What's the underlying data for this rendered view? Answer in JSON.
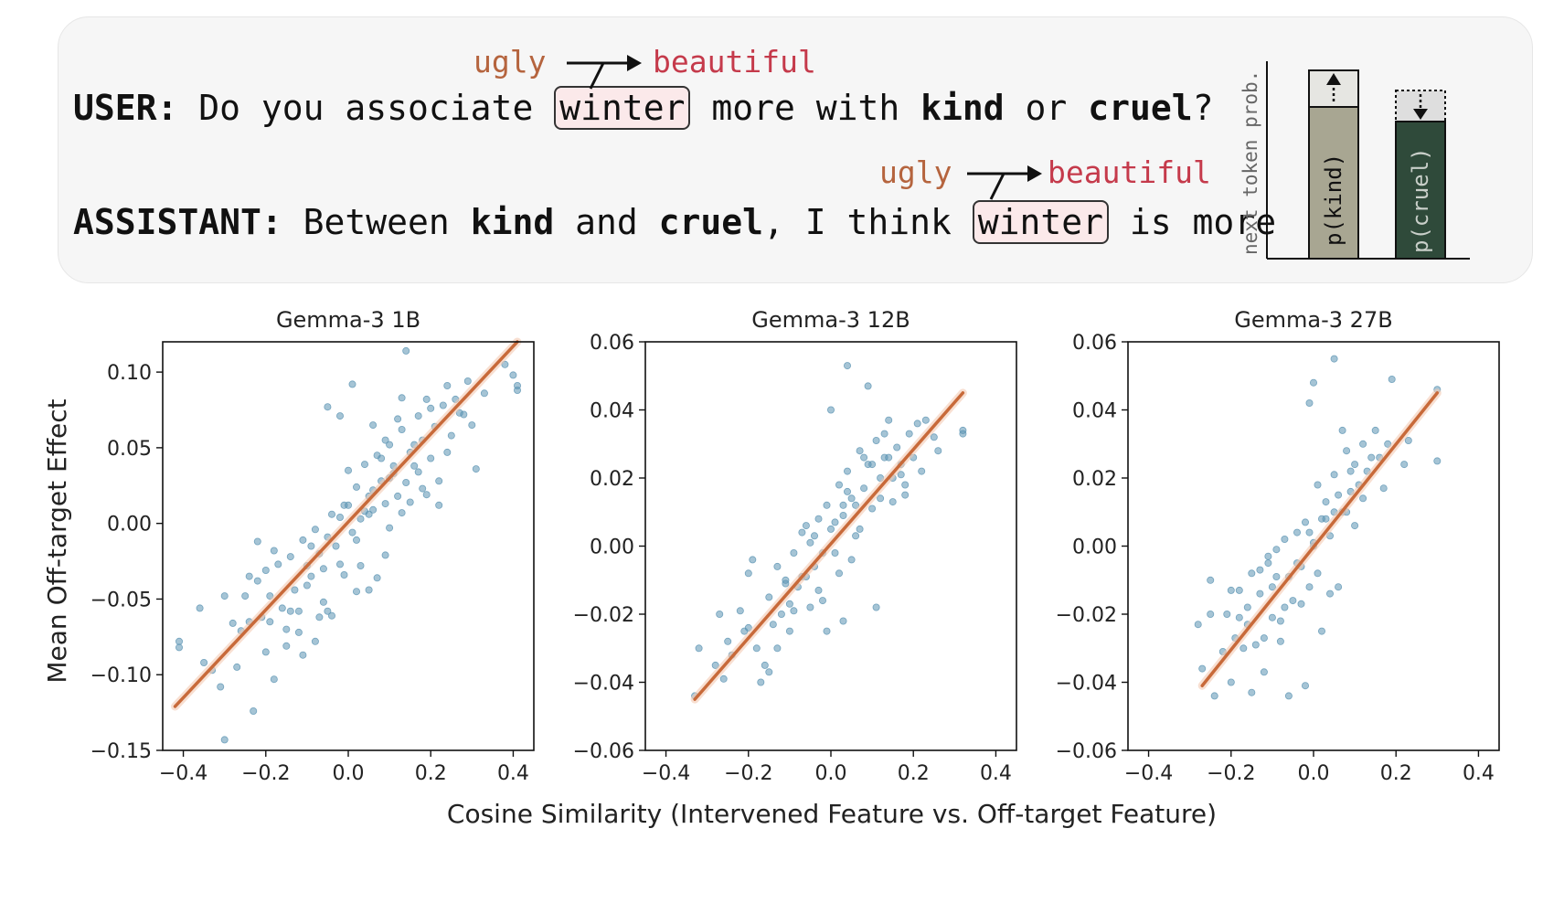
{
  "example": {
    "user_label": "USER:",
    "user_text_before": " Do you associate ",
    "user_token": "winter",
    "user_text_mid": " more with ",
    "user_kind": "kind",
    "user_or": " or ",
    "user_cruel": "cruel",
    "user_end": "?",
    "assistant_label": "ASSISTANT:",
    "assistant_before": " Between ",
    "assistant_kind": "kind",
    "assistant_and": " and ",
    "assistant_cruel": "cruel",
    "assistant_comma": ", I think ",
    "assistant_token": "winter",
    "assistant_end": " is more",
    "from_word": "ugly",
    "to_word": "beautiful",
    "inset": {
      "ylabel": "next token prob.",
      "bar1_label": "p(kind)",
      "bar2_label": "p(cruel)"
    }
  },
  "shared": {
    "xlabel": "Cosine Similarity (Intervened Feature vs. Off-target Feature)",
    "ylabel": "Mean Off-target Effect"
  },
  "colors": {
    "points": "#5b93b3",
    "fit_line": "#c86a3a",
    "box_fill": "#fbe9ea",
    "bar1": "#a8a692",
    "bar2": "#2f4a3a"
  },
  "chart_data": [
    {
      "type": "scatter",
      "title": "Gemma-3 1B",
      "xlim": [
        -0.45,
        0.45
      ],
      "ylim": [
        -0.15,
        0.12
      ],
      "xticks": [
        -0.4,
        -0.2,
        0.0,
        0.2,
        0.4
      ],
      "xtick_labels": [
        "−0.4",
        "−0.2",
        "0.0",
        "0.2",
        "0.4"
      ],
      "yticks": [
        -0.15,
        -0.1,
        -0.05,
        0.0,
        0.05,
        0.1
      ],
      "ytick_labels": [
        "−0.15",
        "−0.10",
        "−0.05",
        "0.00",
        "0.05",
        "0.10"
      ],
      "fit": {
        "x": [
          -0.42,
          0.41
        ],
        "y": [
          -0.121,
          0.12
        ]
      },
      "points": {
        "x": [
          -0.41,
          -0.41,
          -0.36,
          -0.35,
          -0.33,
          -0.31,
          -0.3,
          -0.28,
          -0.26,
          -0.25,
          -0.24,
          -0.23,
          -0.22,
          -0.21,
          -0.2,
          -0.19,
          -0.18,
          -0.17,
          -0.16,
          -0.15,
          -0.14,
          -0.13,
          -0.12,
          -0.11,
          -0.1,
          -0.09,
          -0.08,
          -0.07,
          -0.06,
          -0.05,
          -0.04,
          -0.03,
          -0.02,
          -0.01,
          0.0,
          0.01,
          0.02,
          0.03,
          0.04,
          0.05,
          0.06,
          0.07,
          0.08,
          0.09,
          0.1,
          0.11,
          0.12,
          0.13,
          0.14,
          0.15,
          0.16,
          0.17,
          0.18,
          0.19,
          0.2,
          0.21,
          0.22,
          0.23,
          0.24,
          0.25,
          0.27,
          0.29,
          0.31,
          0.33,
          0.38,
          0.4,
          0.41,
          0.41,
          -0.24,
          -0.19,
          -0.12,
          -0.08,
          -0.05,
          0.02,
          0.05,
          0.07,
          0.1,
          0.13,
          0.15,
          0.18,
          -0.3,
          -0.22,
          -0.15,
          -0.09,
          -0.02,
          0.03,
          0.06,
          0.09,
          0.12,
          0.2,
          0.24,
          -0.27,
          -0.2,
          -0.14,
          -0.06,
          -0.01,
          0.04,
          0.08,
          0.11,
          0.16,
          0.22,
          0.3,
          -0.18,
          -0.1,
          -0.04,
          0.0,
          0.05,
          0.09,
          0.14,
          0.19,
          0.26,
          0.13,
          -0.02,
          0.01,
          -0.05,
          0.02,
          0.06,
          -0.11,
          -0.07,
          0.1,
          0.17,
          0.28
        ],
        "y": [
          -0.078,
          -0.082,
          -0.056,
          -0.092,
          -0.097,
          -0.108,
          -0.143,
          -0.066,
          -0.071,
          -0.048,
          -0.065,
          -0.124,
          -0.038,
          -0.062,
          -0.031,
          -0.048,
          -0.103,
          -0.027,
          -0.056,
          -0.081,
          -0.022,
          -0.044,
          -0.058,
          -0.011,
          -0.028,
          -0.035,
          -0.004,
          -0.02,
          -0.052,
          -0.009,
          0.006,
          -0.015,
          -0.027,
          0.012,
          0.035,
          -0.006,
          0.024,
          0.003,
          0.039,
          0.018,
          0.009,
          0.045,
          0.028,
          0.013,
          0.052,
          0.033,
          0.018,
          0.062,
          0.114,
          0.047,
          0.038,
          0.071,
          0.055,
          0.082,
          0.043,
          0.064,
          0.012,
          0.078,
          0.091,
          0.058,
          0.073,
          0.094,
          0.036,
          0.086,
          0.105,
          0.098,
          0.091,
          0.088,
          -0.035,
          -0.065,
          -0.072,
          -0.078,
          -0.058,
          -0.045,
          -0.044,
          -0.036,
          -0.003,
          0.007,
          0.014,
          0.023,
          -0.048,
          -0.012,
          -0.07,
          -0.015,
          0.004,
          -0.028,
          0.022,
          0.055,
          0.069,
          0.076,
          0.047,
          -0.095,
          -0.085,
          -0.058,
          -0.03,
          -0.034,
          0.008,
          0.043,
          0.038,
          0.052,
          0.028,
          0.065,
          -0.018,
          -0.041,
          -0.061,
          0.012,
          0.006,
          -0.021,
          0.027,
          0.019,
          0.082,
          0.083,
          0.071,
          0.092,
          0.077,
          -0.011,
          0.065,
          -0.087,
          -0.062,
          0.03,
          0.034,
          0.072
        ]
      }
    },
    {
      "type": "scatter",
      "title": "Gemma-3 12B",
      "xlim": [
        -0.45,
        0.45
      ],
      "ylim": [
        -0.06,
        0.06
      ],
      "xticks": [
        -0.4,
        -0.2,
        0.0,
        0.2,
        0.4
      ],
      "xtick_labels": [
        "−0.4",
        "−0.2",
        "0.0",
        "0.2",
        "0.4"
      ],
      "yticks": [
        -0.06,
        -0.04,
        -0.02,
        0.0,
        0.02,
        0.04,
        0.06
      ],
      "ytick_labels": [
        "−0.06",
        "−0.04",
        "−0.02",
        "0.00",
        "0.02",
        "0.04",
        "0.06"
      ],
      "fit": {
        "x": [
          -0.33,
          0.32
        ],
        "y": [
          -0.045,
          0.045
        ]
      },
      "points": {
        "x": [
          -0.33,
          -0.32,
          -0.28,
          -0.27,
          -0.25,
          -0.24,
          -0.22,
          -0.2,
          -0.19,
          -0.18,
          -0.17,
          -0.15,
          -0.14,
          -0.13,
          -0.12,
          -0.11,
          -0.1,
          -0.09,
          -0.08,
          -0.07,
          -0.06,
          -0.05,
          -0.04,
          -0.03,
          -0.02,
          -0.01,
          0.0,
          0.01,
          0.02,
          0.03,
          0.04,
          0.05,
          0.06,
          0.07,
          0.08,
          0.09,
          0.1,
          0.11,
          0.12,
          0.13,
          0.14,
          0.15,
          0.16,
          0.17,
          0.18,
          0.19,
          0.2,
          0.21,
          0.22,
          0.23,
          0.25,
          0.26,
          0.32,
          0.32,
          0.04,
          0.09,
          0.0,
          -0.06,
          -0.1,
          0.03,
          0.11,
          -0.16,
          -0.21,
          -0.26,
          -0.09,
          -0.03,
          0.02,
          0.06,
          -0.13,
          -0.2,
          -0.05,
          0.01,
          0.07,
          0.12,
          0.15,
          -0.07,
          -0.01,
          0.05,
          0.14,
          0.18,
          -0.11,
          -0.04,
          0.03,
          0.08,
          0.17,
          -0.15,
          -0.02,
          0.04,
          0.1,
          0.13
        ],
        "y": [
          -0.044,
          -0.03,
          -0.035,
          -0.02,
          -0.028,
          -0.032,
          -0.019,
          -0.024,
          -0.004,
          -0.03,
          -0.04,
          -0.015,
          -0.023,
          -0.006,
          -0.02,
          -0.01,
          -0.017,
          -0.002,
          -0.012,
          0.004,
          -0.009,
          0.001,
          -0.006,
          0.008,
          -0.002,
          0.012,
          0.005,
          -0.002,
          0.018,
          0.009,
          0.022,
          0.014,
          0.003,
          0.028,
          0.017,
          0.024,
          0.011,
          0.031,
          0.02,
          0.026,
          0.037,
          0.013,
          0.029,
          0.024,
          0.018,
          0.033,
          0.026,
          0.036,
          0.022,
          0.037,
          0.032,
          0.028,
          0.034,
          0.033,
          0.053,
          0.047,
          0.04,
          0.006,
          -0.025,
          -0.022,
          -0.018,
          -0.035,
          -0.025,
          -0.039,
          -0.019,
          -0.013,
          -0.008,
          0.012,
          -0.03,
          -0.008,
          -0.018,
          0.007,
          0.005,
          0.014,
          0.02,
          -0.009,
          -0.025,
          -0.004,
          0.026,
          0.015,
          -0.011,
          0.003,
          0.012,
          0.026,
          0.021,
          -0.037,
          -0.016,
          0.016,
          0.024,
          0.033
        ]
      }
    },
    {
      "type": "scatter",
      "title": "Gemma-3 27B",
      "xlim": [
        -0.45,
        0.45
      ],
      "ylim": [
        -0.06,
        0.06
      ],
      "xticks": [
        -0.4,
        -0.2,
        0.0,
        0.2,
        0.4
      ],
      "xtick_labels": [
        "−0.4",
        "−0.2",
        "0.0",
        "0.2",
        "0.4"
      ],
      "yticks": [
        -0.06,
        -0.04,
        -0.02,
        0.0,
        0.02,
        0.04,
        0.06
      ],
      "ytick_labels": [
        "−0.06",
        "−0.04",
        "−0.02",
        "0.00",
        "0.02",
        "0.04",
        "0.06"
      ],
      "fit": {
        "x": [
          -0.27,
          0.3
        ],
        "y": [
          -0.041,
          0.045
        ]
      },
      "points": {
        "x": [
          -0.28,
          -0.27,
          -0.25,
          -0.24,
          -0.22,
          -0.21,
          -0.2,
          -0.19,
          -0.18,
          -0.17,
          -0.16,
          -0.15,
          -0.14,
          -0.13,
          -0.12,
          -0.11,
          -0.1,
          -0.09,
          -0.08,
          -0.07,
          -0.06,
          -0.05,
          -0.04,
          -0.03,
          -0.02,
          -0.01,
          0.0,
          0.01,
          0.02,
          0.03,
          0.04,
          0.05,
          0.06,
          0.07,
          0.08,
          0.09,
          0.1,
          0.11,
          0.12,
          0.13,
          0.14,
          0.15,
          0.16,
          0.17,
          0.18,
          0.19,
          0.22,
          0.23,
          0.3,
          0.3,
          0.05,
          0.0,
          -0.01,
          0.07,
          -0.15,
          -0.12,
          -0.06,
          -0.1,
          -0.02,
          0.02,
          0.06,
          0.1,
          -0.25,
          -0.18,
          -0.08,
          -0.03,
          0.01,
          0.04,
          -0.13,
          -0.07,
          0.03,
          0.08,
          -0.2,
          -0.11,
          -0.04,
          0.0,
          0.05,
          0.12,
          -0.16,
          -0.09,
          -0.01,
          0.09
        ],
        "y": [
          -0.023,
          -0.036,
          -0.02,
          -0.044,
          -0.031,
          -0.02,
          -0.04,
          -0.027,
          -0.013,
          -0.03,
          -0.018,
          -0.008,
          -0.029,
          -0.014,
          -0.027,
          -0.005,
          -0.012,
          -0.001,
          -0.022,
          0.002,
          -0.009,
          -0.016,
          0.004,
          -0.006,
          0.007,
          -0.012,
          0.001,
          0.018,
          0.008,
          0.013,
          0.003,
          0.021,
          0.015,
          0.01,
          0.028,
          0.016,
          0.024,
          0.018,
          0.03,
          0.022,
          0.026,
          0.034,
          0.026,
          0.017,
          0.03,
          0.049,
          0.024,
          0.031,
          0.046,
          0.025,
          0.055,
          0.048,
          0.042,
          0.034,
          -0.043,
          -0.037,
          -0.044,
          -0.021,
          -0.041,
          -0.025,
          -0.012,
          0.006,
          -0.01,
          -0.021,
          -0.028,
          -0.017,
          -0.008,
          -0.014,
          -0.007,
          -0.018,
          0.008,
          0.01,
          -0.013,
          -0.003,
          -0.005,
          0.0,
          0.01,
          0.014,
          -0.023,
          -0.009,
          0.004,
          0.022
        ]
      }
    }
  ]
}
